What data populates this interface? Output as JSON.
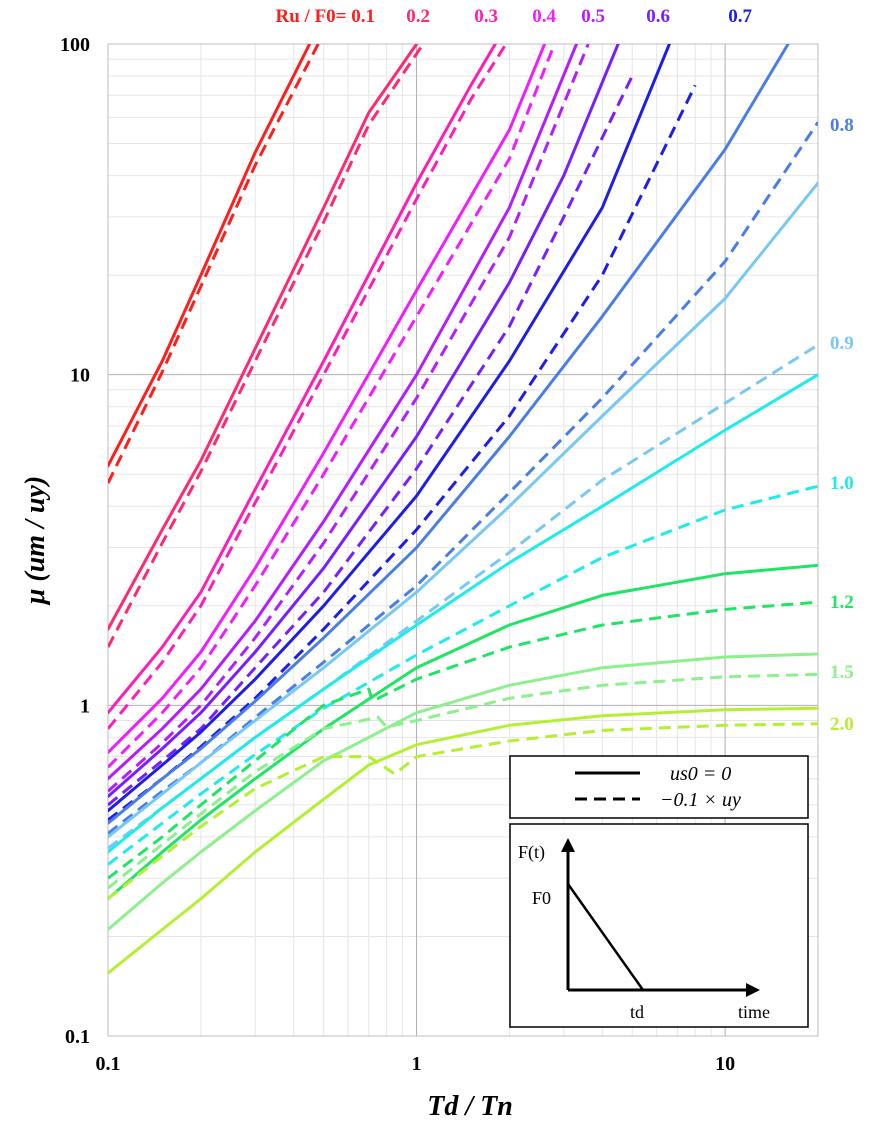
{
  "chart_data": {
    "type": "line",
    "title": "",
    "xlabel": "Td / Tn",
    "ylabel": "μ (um / uy)",
    "x_scale": "log",
    "y_scale": "log",
    "xlim": [
      0.1,
      20
    ],
    "ylim": [
      0.1,
      100
    ],
    "grid": true,
    "x_ticks": [
      {
        "value": 0.1,
        "label": "0.1"
      },
      {
        "value": 1,
        "label": "1"
      },
      {
        "value": 10,
        "label": "10"
      }
    ],
    "y_ticks": [
      {
        "value": 100,
        "label": "100"
      },
      {
        "value": 10,
        "label": "10"
      },
      {
        "value": 1,
        "label": "1"
      },
      {
        "value": 0.1,
        "label": "0.1"
      }
    ],
    "ratio_prefix": "Ru / F0= ",
    "series": [
      {
        "ratio": "0.1",
        "color": "#ff1e1e",
        "solid": [
          [
            0.1,
            5.3
          ],
          [
            0.15,
            11.0
          ],
          [
            0.2,
            20
          ],
          [
            0.3,
            47
          ],
          [
            0.45,
            100
          ]
        ],
        "dashed": [
          [
            0.1,
            4.7
          ],
          [
            0.15,
            10.2
          ],
          [
            0.2,
            18.5
          ],
          [
            0.3,
            43
          ],
          [
            0.48,
            100
          ]
        ]
      },
      {
        "ratio": "0.2",
        "color": "#ff2a6e",
        "solid": [
          [
            0.1,
            1.7
          ],
          [
            0.15,
            3.4
          ],
          [
            0.2,
            5.5
          ],
          [
            0.3,
            12
          ],
          [
            0.5,
            32
          ],
          [
            0.7,
            62
          ],
          [
            1.0,
            100
          ]
        ],
        "dashed": [
          [
            0.1,
            1.5
          ],
          [
            0.15,
            3.1
          ],
          [
            0.2,
            5.1
          ],
          [
            0.3,
            11
          ],
          [
            0.5,
            29
          ],
          [
            0.7,
            57
          ],
          [
            1.05,
            100
          ]
        ]
      },
      {
        "ratio": "0.3",
        "color": "#ff1eb4",
        "solid": [
          [
            0.1,
            0.95
          ],
          [
            0.15,
            1.5
          ],
          [
            0.2,
            2.2
          ],
          [
            0.3,
            4.5
          ],
          [
            0.5,
            11
          ],
          [
            1.0,
            38
          ],
          [
            1.5,
            75
          ],
          [
            1.8,
            100
          ]
        ],
        "dashed": [
          [
            0.1,
            0.85
          ],
          [
            0.15,
            1.35
          ],
          [
            0.2,
            2.0
          ],
          [
            0.3,
            4.1
          ],
          [
            0.5,
            10
          ],
          [
            1.0,
            34
          ],
          [
            1.5,
            68
          ],
          [
            1.95,
            100
          ]
        ]
      },
      {
        "ratio": "0.4",
        "color": "#f01eff",
        "solid": [
          [
            0.1,
            0.72
          ],
          [
            0.15,
            1.05
          ],
          [
            0.2,
            1.45
          ],
          [
            0.3,
            2.6
          ],
          [
            0.5,
            5.8
          ],
          [
            1.0,
            18
          ],
          [
            2.0,
            55
          ],
          [
            2.6,
            100
          ]
        ],
        "dashed": [
          [
            0.1,
            0.65
          ],
          [
            0.15,
            0.95
          ],
          [
            0.2,
            1.3
          ],
          [
            0.3,
            2.3
          ],
          [
            0.5,
            5.0
          ],
          [
            1.0,
            15
          ],
          [
            2.0,
            45
          ],
          [
            2.8,
            100
          ]
        ]
      },
      {
        "ratio": "0.5",
        "color": "#b41eff",
        "solid": [
          [
            0.1,
            0.6
          ],
          [
            0.15,
            0.85
          ],
          [
            0.2,
            1.12
          ],
          [
            0.3,
            1.8
          ],
          [
            0.5,
            3.6
          ],
          [
            1.0,
            10
          ],
          [
            2.0,
            32
          ],
          [
            3.3,
            100
          ]
        ],
        "dashed": [
          [
            0.1,
            0.55
          ],
          [
            0.15,
            0.77
          ],
          [
            0.2,
            1.0
          ],
          [
            0.3,
            1.6
          ],
          [
            0.5,
            3.1
          ],
          [
            1.0,
            8.5
          ],
          [
            2.0,
            26
          ],
          [
            3.6,
            100
          ]
        ]
      },
      {
        "ratio": "0.6",
        "color": "#781eff",
        "solid": [
          [
            0.1,
            0.53
          ],
          [
            0.15,
            0.74
          ],
          [
            0.2,
            0.95
          ],
          [
            0.3,
            1.45
          ],
          [
            0.5,
            2.6
          ],
          [
            1.0,
            6.5
          ],
          [
            2.0,
            19
          ],
          [
            3.0,
            40
          ],
          [
            4.5,
            100
          ]
        ],
        "dashed": [
          [
            0.1,
            0.5
          ],
          [
            0.15,
            0.68
          ],
          [
            0.2,
            0.85
          ],
          [
            0.3,
            1.3
          ],
          [
            0.5,
            2.2
          ],
          [
            1.0,
            5.2
          ],
          [
            2.0,
            14
          ],
          [
            3.0,
            30
          ],
          [
            5.0,
            80
          ]
        ]
      },
      {
        "ratio": "0.7",
        "color": "#1e1ee6",
        "solid": [
          [
            0.1,
            0.48
          ],
          [
            0.15,
            0.66
          ],
          [
            0.2,
            0.83
          ],
          [
            0.3,
            1.2
          ],
          [
            0.5,
            2.0
          ],
          [
            1.0,
            4.3
          ],
          [
            2.0,
            11
          ],
          [
            4.0,
            32
          ],
          [
            6.6,
            100
          ]
        ],
        "dashed": [
          [
            0.1,
            0.45
          ],
          [
            0.15,
            0.6
          ],
          [
            0.2,
            0.75
          ],
          [
            0.3,
            1.05
          ],
          [
            0.5,
            1.7
          ],
          [
            1.0,
            3.4
          ],
          [
            2.0,
            7.5
          ],
          [
            4.0,
            20
          ],
          [
            8.0,
            75
          ]
        ]
      },
      {
        "ratio": "0.8",
        "color": "#4a7ee6",
        "solid": [
          [
            0.1,
            0.44
          ],
          [
            0.15,
            0.6
          ],
          [
            0.2,
            0.74
          ],
          [
            0.3,
            1.03
          ],
          [
            0.5,
            1.6
          ],
          [
            1.0,
            3.0
          ],
          [
            2.0,
            6.5
          ],
          [
            4.0,
            15
          ],
          [
            10,
            48
          ],
          [
            16,
            100
          ]
        ],
        "dashed": [
          [
            0.1,
            0.41
          ],
          [
            0.15,
            0.55
          ],
          [
            0.2,
            0.67
          ],
          [
            0.3,
            0.92
          ],
          [
            0.5,
            1.35
          ],
          [
            1.0,
            2.3
          ],
          [
            2.0,
            4.4
          ],
          [
            4.0,
            8.5
          ],
          [
            10,
            22
          ],
          [
            20,
            58
          ]
        ]
      },
      {
        "ratio": "0.9",
        "color": "#78c8f5",
        "solid": [
          [
            0.1,
            0.4
          ],
          [
            0.15,
            0.54
          ],
          [
            0.2,
            0.67
          ],
          [
            0.3,
            0.9
          ],
          [
            0.5,
            1.3
          ],
          [
            1.0,
            2.2
          ],
          [
            2.0,
            4.0
          ],
          [
            4.0,
            7.5
          ],
          [
            10,
            17
          ],
          [
            20,
            38
          ]
        ],
        "dashed": [
          [
            0.1,
            0.37
          ],
          [
            0.15,
            0.49
          ],
          [
            0.2,
            0.6
          ],
          [
            0.3,
            0.8
          ],
          [
            0.5,
            1.12
          ],
          [
            1.0,
            1.8
          ],
          [
            2.0,
            2.9
          ],
          [
            4.0,
            4.8
          ],
          [
            10,
            8.2
          ],
          [
            20,
            12.3
          ]
        ]
      },
      {
        "ratio": "1.0",
        "color": "#1eebeb",
        "solid": [
          [
            0.1,
            0.36
          ],
          [
            0.15,
            0.49
          ],
          [
            0.2,
            0.6
          ],
          [
            0.3,
            0.8
          ],
          [
            0.5,
            1.12
          ],
          [
            1.0,
            1.75
          ],
          [
            2.0,
            2.7
          ],
          [
            4.0,
            4.0
          ],
          [
            10,
            6.8
          ],
          [
            20,
            10
          ]
        ],
        "dashed": [
          [
            0.1,
            0.33
          ],
          [
            0.15,
            0.44
          ],
          [
            0.2,
            0.54
          ],
          [
            0.3,
            0.71
          ],
          [
            0.5,
            0.98
          ],
          [
            1.0,
            1.42
          ],
          [
            2.0,
            2.0
          ],
          [
            4.0,
            2.8
          ],
          [
            10,
            3.9
          ],
          [
            20,
            4.6
          ]
        ]
      },
      {
        "ratio": "1.2",
        "color": "#1ee664",
        "solid": [
          [
            0.1,
            0.26
          ],
          [
            0.15,
            0.36
          ],
          [
            0.2,
            0.45
          ],
          [
            0.3,
            0.6
          ],
          [
            0.5,
            0.85
          ],
          [
            1.0,
            1.3
          ],
          [
            2.0,
            1.75
          ],
          [
            4.0,
            2.15
          ],
          [
            10,
            2.5
          ],
          [
            20,
            2.65
          ]
        ],
        "dashed": [
          [
            0.1,
            0.3
          ],
          [
            0.15,
            0.4
          ],
          [
            0.2,
            0.5
          ],
          [
            0.3,
            0.68
          ],
          [
            0.5,
            1.0
          ],
          [
            0.7,
            1.12
          ],
          [
            0.72,
            1.03
          ],
          [
            1.0,
            1.2
          ],
          [
            2.0,
            1.5
          ],
          [
            4.0,
            1.75
          ],
          [
            10,
            1.95
          ],
          [
            20,
            2.05
          ]
        ]
      },
      {
        "ratio": "1.5",
        "color": "#8cf08c",
        "solid": [
          [
            0.1,
            0.21
          ],
          [
            0.15,
            0.29
          ],
          [
            0.2,
            0.36
          ],
          [
            0.3,
            0.48
          ],
          [
            0.5,
            0.68
          ],
          [
            1.0,
            0.95
          ],
          [
            2.0,
            1.15
          ],
          [
            4.0,
            1.3
          ],
          [
            10,
            1.4
          ],
          [
            20,
            1.43
          ]
        ],
        "dashed": [
          [
            0.1,
            0.28
          ],
          [
            0.15,
            0.38
          ],
          [
            0.2,
            0.47
          ],
          [
            0.3,
            0.63
          ],
          [
            0.5,
            0.85
          ],
          [
            0.75,
            0.92
          ],
          [
            0.8,
            0.86
          ],
          [
            1.0,
            0.9
          ],
          [
            2.0,
            1.05
          ],
          [
            4.0,
            1.15
          ],
          [
            10,
            1.22
          ],
          [
            20,
            1.24
          ]
        ]
      },
      {
        "ratio": "2.0",
        "color": "#b4f032",
        "solid": [
          [
            0.1,
            0.155
          ],
          [
            0.15,
            0.21
          ],
          [
            0.2,
            0.26
          ],
          [
            0.3,
            0.36
          ],
          [
            0.5,
            0.52
          ],
          [
            0.7,
            0.66
          ],
          [
            1.0,
            0.76
          ],
          [
            2.0,
            0.87
          ],
          [
            4.0,
            0.93
          ],
          [
            10,
            0.97
          ],
          [
            20,
            0.98
          ]
        ],
        "dashed": [
          [
            0.1,
            0.26
          ],
          [
            0.15,
            0.35
          ],
          [
            0.2,
            0.43
          ],
          [
            0.3,
            0.56
          ],
          [
            0.5,
            0.7
          ],
          [
            0.7,
            0.7
          ],
          [
            0.85,
            0.62
          ],
          [
            1.0,
            0.7
          ],
          [
            2.0,
            0.78
          ],
          [
            4.0,
            0.84
          ],
          [
            10,
            0.87
          ],
          [
            20,
            0.88
          ]
        ]
      }
    ],
    "legend": {
      "solid_label": "us0 = 0",
      "dashed_label": "−0.1 × uy",
      "placement": "bottom-right"
    },
    "inset": {
      "y_label": "F(t)",
      "peak_label": "F0",
      "duration_label": "td",
      "x_label": "time"
    }
  }
}
